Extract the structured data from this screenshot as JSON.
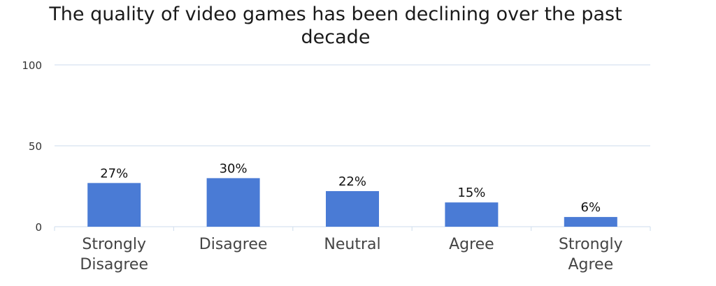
{
  "chart_data": {
    "type": "bar",
    "title": "The quality of video games has been declining over the past decade",
    "categories": [
      [
        "Strongly",
        "Disagree"
      ],
      [
        "Disagree"
      ],
      [
        "Neutral"
      ],
      [
        "Agree"
      ],
      [
        "Strongly",
        "Agree"
      ]
    ],
    "values": [
      27,
      30,
      22,
      15,
      6
    ],
    "data_labels": [
      "27%",
      "30%",
      "22%",
      "15%",
      "6%"
    ],
    "ylim": [
      0,
      100
    ],
    "yticks": [
      0,
      50,
      100
    ],
    "xlabel": "",
    "ylabel": "",
    "grid": true,
    "legend": "none",
    "bar_color": "#4a7bd5",
    "grid_color": "#d6e2f0"
  }
}
